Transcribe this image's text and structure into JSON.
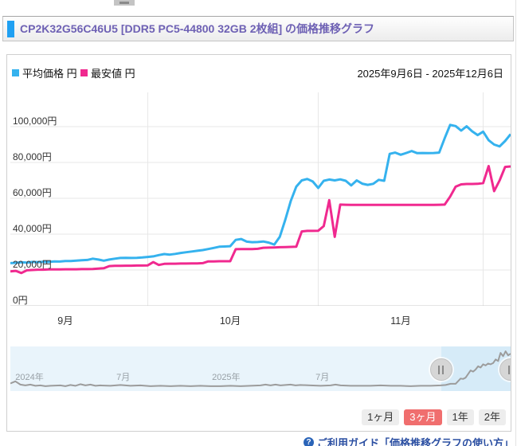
{
  "title": {
    "text": "CP2K32G56C46U5 [DDR5 PC5-44800 32GB 2枚組] の価格推移グラフ"
  },
  "legend": {
    "items": [
      {
        "label": "平均価格 円",
        "series": "average"
      },
      {
        "label": "最安値 円",
        "series": "lowest"
      }
    ],
    "date_range": "2025年9月6日 - 2025年12月6日"
  },
  "chart_data": {
    "type": "line",
    "title": "価格推移グラフ",
    "x_unit": "days since 2025-09-06",
    "x_range": [
      0,
      91
    ],
    "ylim": [
      0,
      110000
    ],
    "grid": true,
    "y_ticks": [
      {
        "value": 0,
        "label": "0円"
      },
      {
        "value": 20000,
        "label": "20,000円"
      },
      {
        "value": 40000,
        "label": "40,000円"
      },
      {
        "value": 60000,
        "label": "60,000円"
      },
      {
        "value": 80000,
        "label": "80,000円"
      },
      {
        "value": 100000,
        "label": "100,000円"
      }
    ],
    "x_ticks": [
      {
        "label": "9月",
        "day": 10
      },
      {
        "label": "10月",
        "day": 40
      },
      {
        "label": "11月",
        "day": 71
      }
    ],
    "month_grid_days": [
      25,
      56,
      86
    ],
    "series": [
      {
        "name": "平均価格",
        "color": "#35b2ee",
        "points": [
          [
            0,
            23800
          ],
          [
            1,
            24000
          ],
          [
            2,
            24300
          ],
          [
            3,
            24100
          ],
          [
            4,
            24500
          ],
          [
            5,
            24400
          ],
          [
            6,
            24600
          ],
          [
            7,
            24500
          ],
          [
            8,
            24800
          ],
          [
            9,
            24700
          ],
          [
            10,
            25000
          ],
          [
            11,
            25000
          ],
          [
            12,
            25200
          ],
          [
            13,
            25400
          ],
          [
            14,
            25600
          ],
          [
            15,
            26300
          ],
          [
            16,
            25800
          ],
          [
            17,
            25200
          ],
          [
            18,
            25800
          ],
          [
            19,
            26300
          ],
          [
            20,
            26700
          ],
          [
            21,
            26800
          ],
          [
            22,
            26700
          ],
          [
            23,
            26800
          ],
          [
            24,
            27000
          ],
          [
            25,
            27300
          ],
          [
            26,
            27600
          ],
          [
            27,
            28300
          ],
          [
            28,
            28900
          ],
          [
            29,
            28600
          ],
          [
            30,
            29000
          ],
          [
            31,
            29500
          ],
          [
            32,
            29900
          ],
          [
            33,
            30300
          ],
          [
            34,
            30700
          ],
          [
            35,
            31100
          ],
          [
            36,
            31700
          ],
          [
            37,
            32300
          ],
          [
            38,
            33000
          ],
          [
            39,
            33100
          ],
          [
            40,
            33300
          ],
          [
            41,
            36800
          ],
          [
            42,
            37300
          ],
          [
            43,
            35800
          ],
          [
            44,
            35500
          ],
          [
            45,
            35600
          ],
          [
            46,
            35900
          ],
          [
            47,
            35300
          ],
          [
            48,
            34200
          ],
          [
            49,
            38500
          ],
          [
            50,
            48000
          ],
          [
            51,
            58500
          ],
          [
            52,
            66500
          ],
          [
            53,
            70000
          ],
          [
            54,
            70800
          ],
          [
            55,
            69400
          ],
          [
            56,
            65800
          ],
          [
            57,
            69800
          ],
          [
            58,
            70500
          ],
          [
            59,
            70000
          ],
          [
            60,
            70600
          ],
          [
            61,
            69800
          ],
          [
            62,
            67200
          ],
          [
            63,
            70000
          ],
          [
            64,
            68200
          ],
          [
            65,
            67500
          ],
          [
            66,
            68100
          ],
          [
            67,
            70300
          ],
          [
            68,
            69800
          ],
          [
            69,
            84800
          ],
          [
            70,
            85500
          ],
          [
            71,
            84300
          ],
          [
            72,
            85300
          ],
          [
            73,
            86400
          ],
          [
            74,
            85200
          ],
          [
            75,
            85300
          ],
          [
            76,
            85200
          ],
          [
            77,
            85300
          ],
          [
            78,
            85500
          ],
          [
            79,
            93500
          ],
          [
            80,
            101000
          ],
          [
            81,
            100300
          ],
          [
            82,
            97800
          ],
          [
            83,
            100200
          ],
          [
            84,
            97400
          ],
          [
            85,
            95300
          ],
          [
            86,
            97200
          ],
          [
            87,
            92400
          ],
          [
            88,
            90000
          ],
          [
            89,
            89000
          ],
          [
            90,
            92000
          ],
          [
            91,
            95800
          ]
        ]
      },
      {
        "name": "最安値",
        "color": "#f0298f",
        "points": [
          [
            0,
            19200
          ],
          [
            1,
            19500
          ],
          [
            2,
            18300
          ],
          [
            3,
            19800
          ],
          [
            4,
            20000
          ],
          [
            5,
            20200
          ],
          [
            6,
            20200
          ],
          [
            7,
            20300
          ],
          [
            8,
            20300
          ],
          [
            9,
            20300
          ],
          [
            10,
            20400
          ],
          [
            11,
            20400
          ],
          [
            12,
            20400
          ],
          [
            13,
            20500
          ],
          [
            14,
            20500
          ],
          [
            15,
            20600
          ],
          [
            16,
            20800
          ],
          [
            17,
            21000
          ],
          [
            18,
            22200
          ],
          [
            19,
            22300
          ],
          [
            20,
            22300
          ],
          [
            21,
            22400
          ],
          [
            22,
            22400
          ],
          [
            23,
            22500
          ],
          [
            24,
            22500
          ],
          [
            25,
            22600
          ],
          [
            26,
            24400
          ],
          [
            27,
            22800
          ],
          [
            28,
            23400
          ],
          [
            29,
            23500
          ],
          [
            30,
            23500
          ],
          [
            31,
            23600
          ],
          [
            32,
            23600
          ],
          [
            33,
            23700
          ],
          [
            34,
            23700
          ],
          [
            35,
            23800
          ],
          [
            36,
            24800
          ],
          [
            37,
            24800
          ],
          [
            38,
            24900
          ],
          [
            39,
            24900
          ],
          [
            40,
            24900
          ],
          [
            41,
            31600
          ],
          [
            42,
            31700
          ],
          [
            43,
            31700
          ],
          [
            44,
            31700
          ],
          [
            45,
            31800
          ],
          [
            46,
            32400
          ],
          [
            47,
            32500
          ],
          [
            48,
            32600
          ],
          [
            49,
            32700
          ],
          [
            50,
            32800
          ],
          [
            51,
            32900
          ],
          [
            52,
            33000
          ],
          [
            53,
            41500
          ],
          [
            54,
            41800
          ],
          [
            55,
            41800
          ],
          [
            56,
            41900
          ],
          [
            57,
            44500
          ],
          [
            58,
            59000
          ],
          [
            59,
            38500
          ],
          [
            60,
            56500
          ],
          [
            61,
            56400
          ],
          [
            62,
            56300
          ],
          [
            63,
            56300
          ],
          [
            64,
            56300
          ],
          [
            65,
            56300
          ],
          [
            66,
            56300
          ],
          [
            67,
            56300
          ],
          [
            68,
            56300
          ],
          [
            69,
            56300
          ],
          [
            70,
            56300
          ],
          [
            71,
            56300
          ],
          [
            72,
            56300
          ],
          [
            73,
            56300
          ],
          [
            74,
            56300
          ],
          [
            75,
            56300
          ],
          [
            76,
            56300
          ],
          [
            77,
            56300
          ],
          [
            78,
            56400
          ],
          [
            79,
            56500
          ],
          [
            80,
            61000
          ],
          [
            81,
            66500
          ],
          [
            82,
            67800
          ],
          [
            83,
            68000
          ],
          [
            84,
            68000
          ],
          [
            85,
            68100
          ],
          [
            86,
            68500
          ],
          [
            87,
            78000
          ],
          [
            88,
            64000
          ],
          [
            89,
            70000
          ],
          [
            90,
            77500
          ],
          [
            91,
            77800
          ]
        ]
      }
    ]
  },
  "navigator": {
    "labels": [
      {
        "text": "2024年",
        "pct": 1.0
      },
      {
        "text": "7月",
        "pct": 21.2
      },
      {
        "text": "2025年",
        "pct": 40.3
      },
      {
        "text": "7月",
        "pct": 61.0
      }
    ],
    "selection_start_pct": 86.1,
    "line_color": "#9c9c9c",
    "series_pts": [
      [
        0,
        0.13
      ],
      [
        1,
        0.18
      ],
      [
        2,
        0.1
      ],
      [
        3,
        0.08
      ],
      [
        4,
        0.1
      ],
      [
        5,
        0.07
      ],
      [
        6,
        0.08
      ],
      [
        7,
        0.06
      ],
      [
        8,
        0.07
      ],
      [
        10,
        0.08
      ],
      [
        11,
        0.06
      ],
      [
        12,
        0.09
      ],
      [
        13,
        0.07
      ],
      [
        14,
        0.11
      ],
      [
        15,
        0.08
      ],
      [
        16,
        0.1
      ],
      [
        17,
        0.07
      ],
      [
        18,
        0.08
      ],
      [
        20,
        0.07
      ],
      [
        22,
        0.09
      ],
      [
        24,
        0.07
      ],
      [
        26,
        0.08
      ],
      [
        28,
        0.06
      ],
      [
        30,
        0.07
      ],
      [
        32,
        0.06
      ],
      [
        34,
        0.07
      ],
      [
        36,
        0.06
      ],
      [
        38,
        0.07
      ],
      [
        40,
        0.06
      ],
      [
        42,
        0.06
      ],
      [
        44,
        0.07
      ],
      [
        46,
        0.06
      ],
      [
        48,
        0.07
      ],
      [
        50,
        0.08
      ],
      [
        51,
        0.1
      ],
      [
        52,
        0.08
      ],
      [
        53,
        0.1
      ],
      [
        54,
        0.08
      ],
      [
        55,
        0.09
      ],
      [
        56,
        0.1
      ],
      [
        57,
        0.08
      ],
      [
        58,
        0.09
      ],
      [
        60,
        0.08
      ],
      [
        62,
        0.07
      ],
      [
        64,
        0.08
      ],
      [
        65,
        0.1
      ],
      [
        66,
        0.08
      ],
      [
        68,
        0.07
      ],
      [
        70,
        0.07
      ],
      [
        72,
        0.07
      ],
      [
        74,
        0.08
      ],
      [
        76,
        0.07
      ],
      [
        78,
        0.07
      ],
      [
        80,
        0.06
      ],
      [
        82,
        0.07
      ],
      [
        84,
        0.07
      ],
      [
        86,
        0.08
      ],
      [
        87,
        0.09
      ],
      [
        88,
        0.12
      ],
      [
        89,
        0.12
      ],
      [
        90,
        0.25
      ],
      [
        90.5,
        0.24
      ],
      [
        91,
        0.27
      ],
      [
        92,
        0.45
      ],
      [
        92.5,
        0.42
      ],
      [
        93,
        0.47
      ],
      [
        93.5,
        0.55
      ],
      [
        94,
        0.52
      ],
      [
        94.5,
        0.6
      ],
      [
        95,
        0.57
      ],
      [
        95.5,
        0.62
      ],
      [
        96,
        0.6
      ],
      [
        96.5,
        0.63
      ],
      [
        97,
        0.72
      ],
      [
        97.5,
        0.68
      ],
      [
        98,
        0.88
      ],
      [
        98.5,
        0.8
      ],
      [
        99,
        0.92
      ],
      [
        99.5,
        0.82
      ],
      [
        100,
        0.86
      ]
    ]
  },
  "range_buttons": [
    {
      "label": "1ヶ月",
      "selected": false
    },
    {
      "label": "3ヶ月",
      "selected": true
    },
    {
      "label": "1年",
      "selected": false
    },
    {
      "label": "2年",
      "selected": false
    }
  ],
  "footer": {
    "icon_glyph": "?",
    "help_text": "ご利用ガイド「価格推移グラフの使い方」"
  },
  "colors": {
    "average_line": "#35b2ee",
    "lowest_line": "#f0298f",
    "title_text": "#6e61b4",
    "title_accent": "#1fa0f2",
    "selected_button": "#f06e6e",
    "gridline": "#e7e7e7",
    "zero_line": "#c9c9c9"
  }
}
